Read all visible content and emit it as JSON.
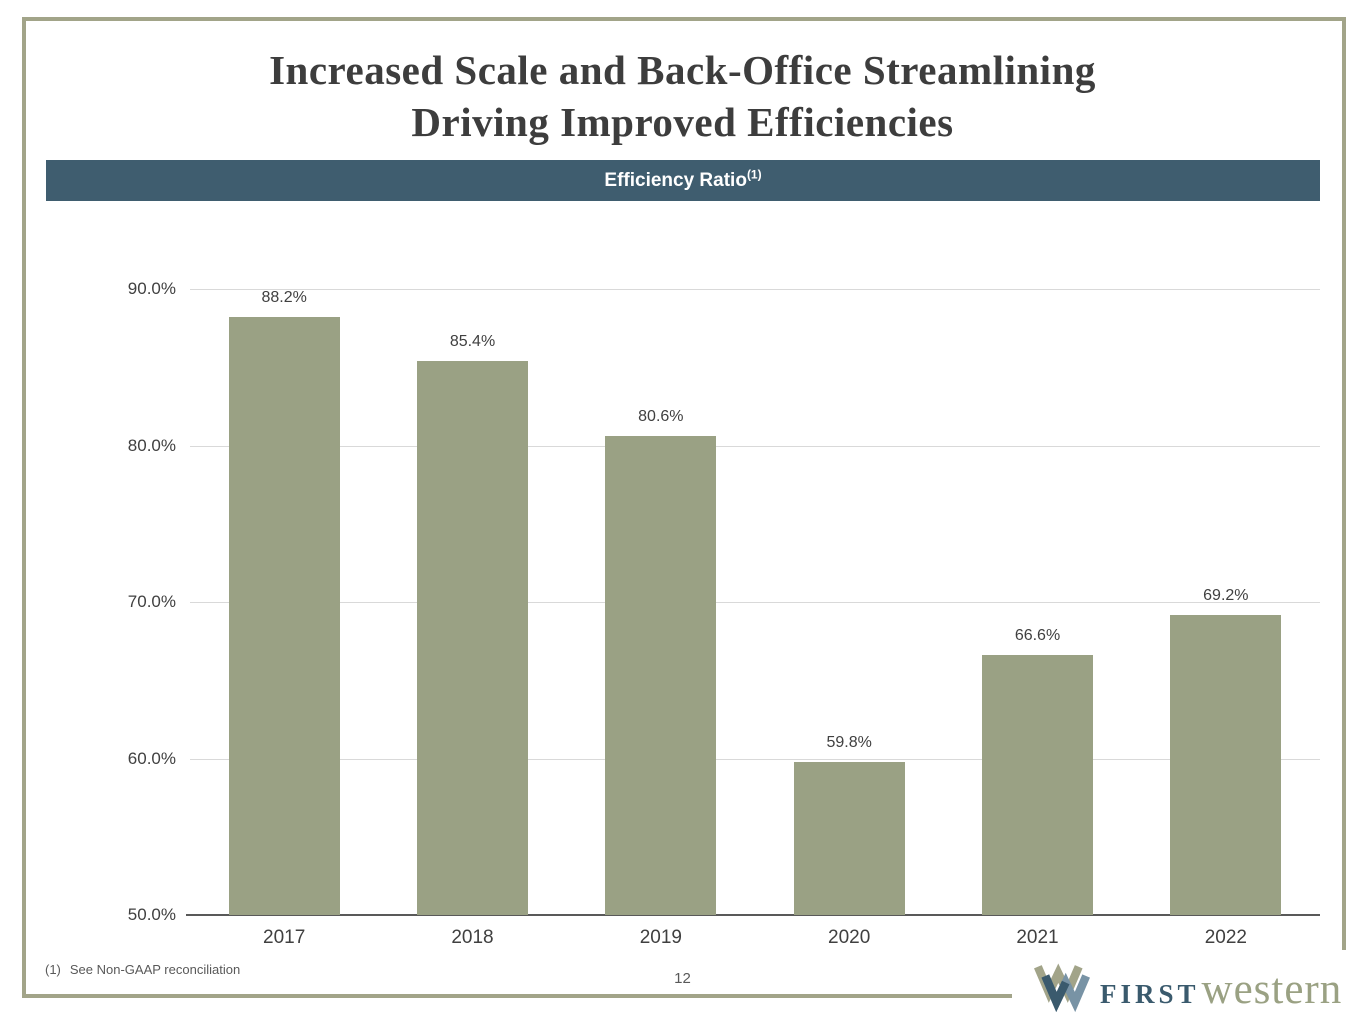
{
  "slide": {
    "title_line1": "Increased Scale and Back-Office Streamlining",
    "title_line2": "Driving Improved Efficiencies",
    "banner": {
      "label": "Efficiency Ratio",
      "superscript": "(1)"
    },
    "footnote": {
      "marker": "(1)",
      "text": "See Non-GAAP reconciliation"
    },
    "page_number": "12",
    "logo": {
      "word1": "FIRST",
      "word2": "western"
    }
  },
  "chart_data": {
    "type": "bar",
    "title": "Efficiency Ratio (1)",
    "categories": [
      "2017",
      "2018",
      "2019",
      "2020",
      "2021",
      "2022"
    ],
    "values": [
      88.2,
      85.4,
      80.6,
      59.8,
      66.6,
      69.2
    ],
    "value_labels": [
      "88.2%",
      "85.4%",
      "80.6%",
      "59.8%",
      "66.6%",
      "69.2%"
    ],
    "xlabel": "",
    "ylabel": "",
    "ylim": [
      50,
      90
    ],
    "yticks": [
      50,
      60,
      70,
      80,
      90
    ],
    "ytick_labels": [
      "50.0%",
      "60.0%",
      "70.0%",
      "80.0%",
      "90.0%"
    ],
    "grid": true,
    "legend": false,
    "bar_color": "#9aa184"
  },
  "colors": {
    "banner_bg": "#3f5d6f",
    "slide_border": "#a2a489",
    "title_text": "#3d3d3d",
    "axis_text": "#404040",
    "gridline": "#d9d9d9",
    "axis_line": "#595959",
    "bar": "#9aa184",
    "logo_first": "#3a5a6d",
    "logo_western": "#9aa183"
  }
}
